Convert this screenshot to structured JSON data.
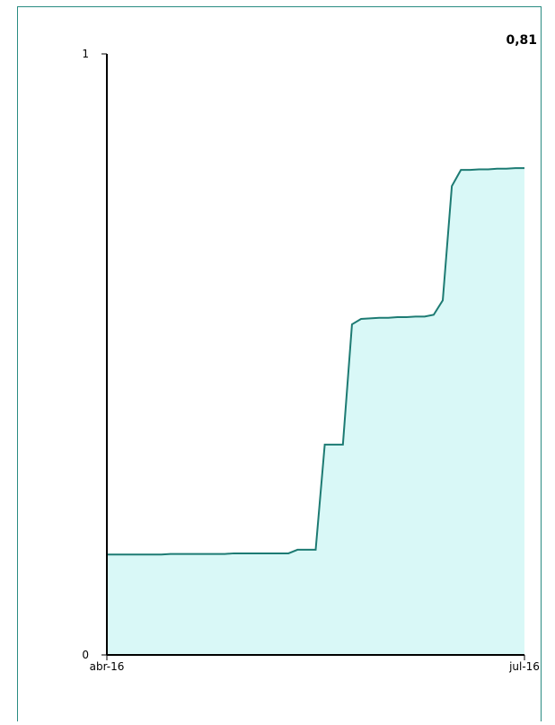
{
  "chart_data": {
    "type": "area",
    "annotation": "0,81",
    "categories": [
      "abr-16",
      null,
      null,
      null,
      null,
      null,
      null,
      null,
      null,
      null,
      null,
      null,
      null,
      null,
      null,
      null,
      null,
      null,
      null,
      null,
      null,
      null,
      null,
      null,
      null,
      null,
      null,
      null,
      null,
      null,
      null,
      null,
      null,
      null,
      null,
      null,
      null,
      null,
      null,
      null,
      null,
      null,
      null,
      null,
      null,
      null,
      "jul-16"
    ],
    "values": [
      0.167,
      0.167,
      0.167,
      0.167,
      0.167,
      0.167,
      0.167,
      0.168,
      0.168,
      0.168,
      0.168,
      0.168,
      0.168,
      0.168,
      0.169,
      0.169,
      0.169,
      0.169,
      0.169,
      0.169,
      0.169,
      0.175,
      0.175,
      0.175,
      0.35,
      0.35,
      0.35,
      0.55,
      0.559,
      0.56,
      0.561,
      0.561,
      0.562,
      0.562,
      0.563,
      0.563,
      0.566,
      0.59,
      0.78,
      0.807,
      0.807,
      0.808,
      0.808,
      0.809,
      0.809,
      0.81,
      0.81
    ],
    "color": "#1d7b73",
    "fill": "#d9f8f7",
    "ylim": [
      0,
      1
    ],
    "yticks": [
      0,
      1
    ]
  }
}
